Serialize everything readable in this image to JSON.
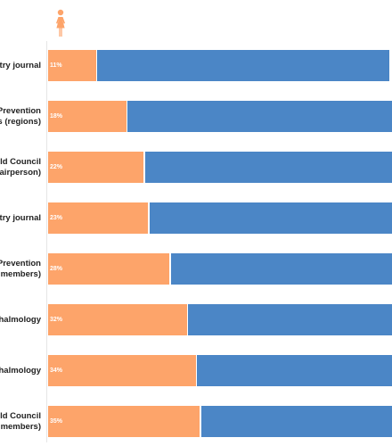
{
  "chart_data": {
    "type": "bar",
    "orientation": "horizontal",
    "stacked": true,
    "categories": [
      [
        "Ophthalmic Physiology and Optometry journal"
      ],
      [
        "International Agency for the Prevention",
        "of Blindness (regions)"
      ],
      [
        "World Council",
        "of Optometry (chairperson)"
      ],
      [
        "Eye and Contact Lens Optometry journal"
      ],
      [
        "International Agency for the Prevention",
        "of Blindness (board members)"
      ],
      [
        "Indian Journal of Ophthalmology"
      ],
      [
        "British Journal of Ophthalmology"
      ],
      [
        "World Council",
        "of Optometry (board members)"
      ]
    ],
    "series": [
      {
        "name": "",
        "color": "#fda46a",
        "values": [
          11,
          18,
          22,
          23,
          28,
          32,
          34,
          35
        ],
        "value_labels": [
          "11%",
          "18%",
          "22%",
          "23%",
          "28%",
          "32%",
          "34%",
          "35%"
        ]
      },
      {
        "name": "",
        "color": "#4b86c6",
        "values": [
          89,
          82,
          78,
          77,
          72,
          68,
          66,
          65
        ]
      }
    ],
    "xlim": [
      0,
      100
    ],
    "legend_icons": [
      "female-icon"
    ],
    "grid": false
  }
}
